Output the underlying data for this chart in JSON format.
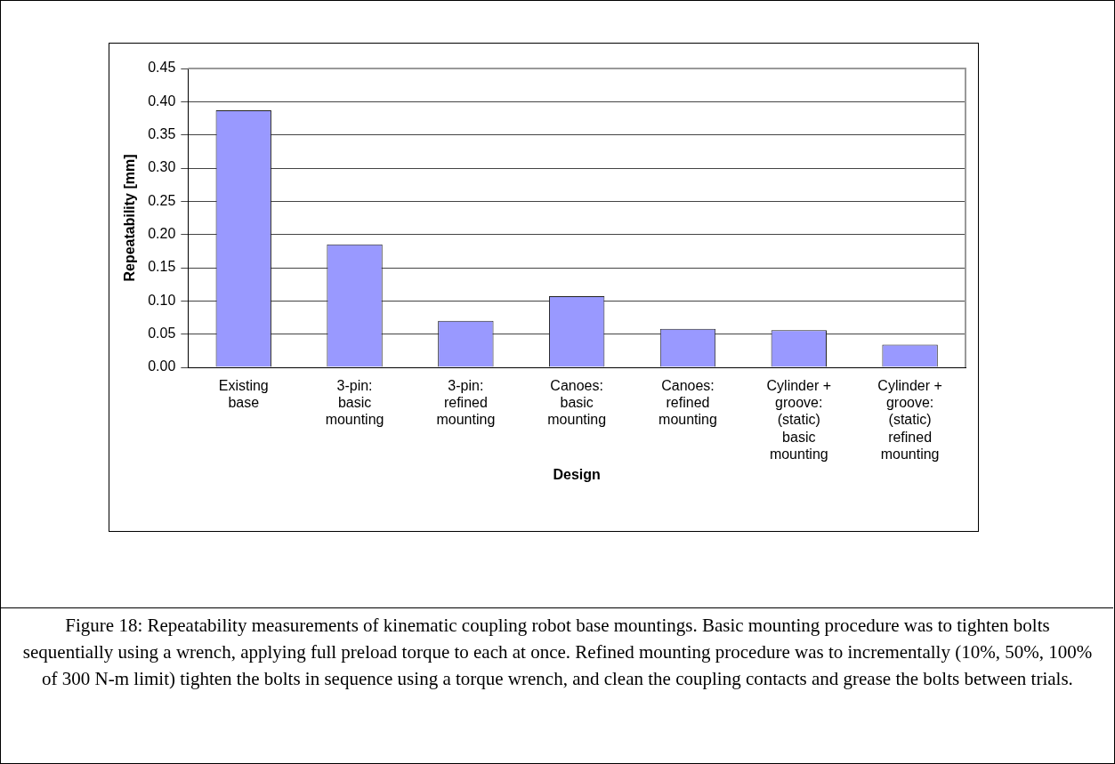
{
  "chart_data": {
    "type": "bar",
    "xlabel": "Design",
    "ylabel": "Repeatability [mm]",
    "categories": [
      "Existing base",
      "3-pin: basic mounting",
      "3-pin: refined mounting",
      "Canoes: basic mounting",
      "Canoes: refined mounting",
      "Cylinder + groove: (static) basic mounting",
      "Cylinder + groove: (static) refined mounting"
    ],
    "values": [
      0.387,
      0.185,
      0.07,
      0.107,
      0.058,
      0.056,
      0.034
    ],
    "color": "#9999ff",
    "ylim": [
      0,
      0.45
    ],
    "yticks": [
      {
        "value": 0,
        "label": "0.00"
      },
      {
        "value": 0.05,
        "label": "0.05"
      },
      {
        "value": 0.1,
        "label": "0.10"
      },
      {
        "value": 0.15,
        "label": "0.15"
      },
      {
        "value": 0.2,
        "label": "0.20"
      },
      {
        "value": 0.25,
        "label": "0.25"
      },
      {
        "value": 0.3,
        "label": "0.30"
      },
      {
        "value": 0.35,
        "label": "0.35"
      },
      {
        "value": 0.4,
        "label": "0.40"
      },
      {
        "value": 0.45,
        "label": "0.45"
      }
    ],
    "grid": "y",
    "legend": false,
    "annotations": [
      "Figure 18: Repeatability measurements of kinematic coupling robot base mountings. Basic mounting procedure was to tighten bolts sequentially using a wrench, applying full preload torque to each at once. Refined mounting procedure was to incrementally (10%, 50%, 100% of 300 N-m limit) tighten the bolts in sequence using a torque wrench, and clean the coupling contacts and grease the bolts between trials."
    ]
  }
}
